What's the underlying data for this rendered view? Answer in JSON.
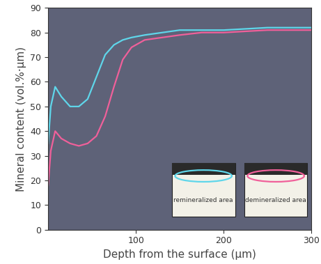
{
  "chart_data": {
    "type": "line",
    "x_label": "Depth from the surface (µm)",
    "y_label": "Mineral content (vol.%·µm)",
    "x": [
      0,
      3,
      8,
      15,
      25,
      35,
      45,
      55,
      65,
      75,
      85,
      95,
      110,
      130,
      150,
      175,
      200,
      250,
      300
    ],
    "series": [
      {
        "name": "remineralized area",
        "color": "#5fd6ea",
        "values": [
          35,
          50,
          58,
          54,
          50,
          50,
          53,
          62,
          71,
          75,
          77,
          78,
          79,
          80,
          81,
          81,
          81,
          82,
          82
        ]
      },
      {
        "name": "demineralized area",
        "color": "#f0609a",
        "values": [
          18,
          32,
          40,
          37,
          35,
          34,
          35,
          38,
          46,
          58,
          69,
          74,
          77,
          78,
          79,
          80,
          80,
          81,
          81
        ]
      }
    ],
    "xlim": [
      0,
      300
    ],
    "xticks": [
      100,
      200,
      300
    ],
    "ylim": [
      0,
      90
    ],
    "yticks": [
      0,
      10,
      20,
      30,
      40,
      50,
      60,
      70,
      80,
      90
    ],
    "grid": false
  }
}
